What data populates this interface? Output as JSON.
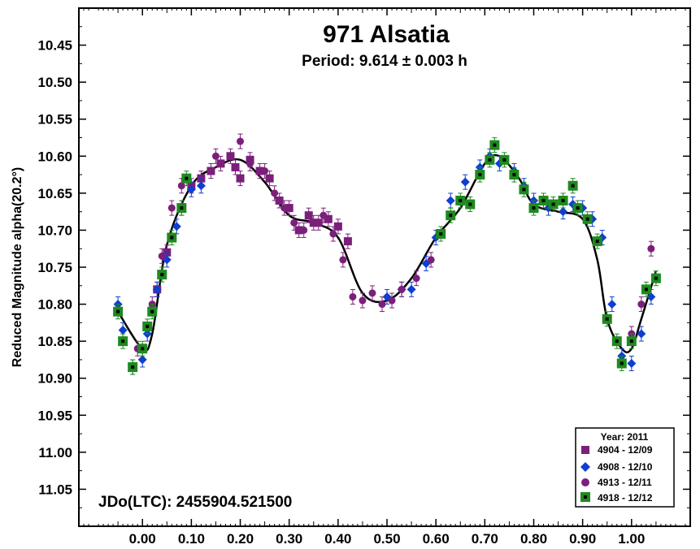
{
  "chart_data": {
    "type": "scatter",
    "title": "971 Alsatia",
    "subtitle": "Period: 9.614 ± 0.003 h",
    "ylabel": "Reduced Magnitude alpha(20.2°)",
    "xlabel": "",
    "annotation": "JDo(LTC): 2455904.521500",
    "xlim": [
      -0.13,
      1.12
    ],
    "ylim": [
      11.1,
      10.4
    ],
    "y_inverted": true,
    "x_ticks": [
      "0.00",
      "0.10",
      "0.20",
      "0.30",
      "0.40",
      "0.50",
      "0.60",
      "0.70",
      "0.80",
      "0.90",
      "1.00"
    ],
    "y_ticks": [
      "10.45",
      "10.50",
      "10.55",
      "10.60",
      "10.65",
      "10.70",
      "10.75",
      "10.80",
      "10.85",
      "10.90",
      "10.95",
      "11.00",
      "11.05"
    ],
    "legend": {
      "title": "Year: 2011",
      "placement": "bottom-right",
      "entries": [
        "4904 - 12/09",
        "4908 - 12/10",
        "4913 - 12/11",
        "4918 - 12/12"
      ]
    },
    "fit_curve": {
      "x": [
        -0.05,
        0.0,
        0.02,
        0.05,
        0.1,
        0.15,
        0.2,
        0.25,
        0.3,
        0.35,
        0.4,
        0.45,
        0.5,
        0.55,
        0.6,
        0.65,
        0.7,
        0.73,
        0.77,
        0.8,
        0.85,
        0.9,
        0.93,
        0.95,
        0.98,
        1.0,
        1.02,
        1.05
      ],
      "y": [
        10.81,
        10.86,
        10.84,
        10.72,
        10.64,
        10.615,
        10.605,
        10.635,
        10.68,
        10.69,
        10.71,
        10.785,
        10.795,
        10.765,
        10.71,
        10.67,
        10.61,
        10.6,
        10.63,
        10.665,
        10.675,
        10.685,
        10.74,
        10.82,
        10.86,
        10.86,
        10.82,
        10.755
      ]
    },
    "series": [
      {
        "name": "4904 - 12/09",
        "marker": "square",
        "color": "#7b1f7b",
        "x": [
          0.03,
          0.05,
          0.08,
          0.1,
          0.12,
          0.14,
          0.16,
          0.18,
          0.19,
          0.2,
          0.22,
          0.24,
          0.26,
          0.28,
          0.3,
          0.32,
          0.34,
          0.35,
          0.36,
          0.38,
          0.4,
          0.42
        ],
        "y": [
          10.78,
          10.73,
          10.67,
          10.64,
          10.63,
          10.62,
          10.61,
          10.6,
          10.615,
          10.63,
          10.605,
          10.62,
          10.63,
          10.66,
          10.67,
          10.7,
          10.68,
          10.69,
          10.69,
          10.685,
          10.695,
          10.715
        ]
      },
      {
        "name": "4908 - 12/10",
        "marker": "diamond",
        "color": "#0f3fd0",
        "x": [
          -0.05,
          -0.04,
          -0.02,
          0.0,
          0.01,
          0.03,
          0.05,
          0.07,
          0.1,
          0.12,
          0.5,
          0.53,
          0.55,
          0.58,
          0.6,
          0.63,
          0.66,
          0.69,
          0.71,
          0.73,
          0.76,
          0.78,
          0.8,
          0.83,
          0.86,
          0.88,
          0.9,
          0.92,
          0.94,
          0.96,
          0.98,
          1.0,
          1.02,
          1.04
        ],
        "y": [
          10.8,
          10.835,
          10.885,
          10.875,
          10.84,
          10.78,
          10.74,
          10.695,
          10.645,
          10.64,
          10.79,
          10.78,
          10.78,
          10.745,
          10.71,
          10.66,
          10.635,
          10.615,
          10.6,
          10.61,
          10.62,
          10.64,
          10.66,
          10.67,
          10.675,
          10.665,
          10.67,
          10.685,
          10.71,
          10.8,
          10.87,
          10.88,
          10.84,
          10.79
        ]
      },
      {
        "name": "4913 - 12/11",
        "marker": "circle",
        "color": "#7b1f7b",
        "x": [
          -0.01,
          0.02,
          0.04,
          0.06,
          0.08,
          0.15,
          0.2,
          0.22,
          0.25,
          0.27,
          0.29,
          0.31,
          0.33,
          0.37,
          0.39,
          0.41,
          0.43,
          0.45,
          0.47,
          0.49,
          0.51,
          0.53,
          0.56,
          0.59,
          1.0,
          1.02,
          1.04
        ],
        "y": [
          10.86,
          10.8,
          10.735,
          10.67,
          10.64,
          10.6,
          10.58,
          10.61,
          10.62,
          10.65,
          10.67,
          10.69,
          10.7,
          10.68,
          10.705,
          10.74,
          10.79,
          10.795,
          10.785,
          10.8,
          10.795,
          10.78,
          10.765,
          10.74,
          10.84,
          10.8,
          10.725
        ]
      },
      {
        "name": "4918 - 12/12",
        "marker": "square-black",
        "color": "#1e8a1e",
        "x": [
          -0.05,
          -0.04,
          -0.02,
          0.0,
          0.01,
          0.02,
          0.04,
          0.06,
          0.08,
          0.09,
          0.61,
          0.63,
          0.65,
          0.67,
          0.69,
          0.71,
          0.72,
          0.74,
          0.76,
          0.78,
          0.8,
          0.82,
          0.84,
          0.86,
          0.88,
          0.89,
          0.91,
          0.93,
          0.95,
          0.97,
          0.98,
          1.0,
          1.03,
          1.05
        ],
        "y": [
          10.81,
          10.85,
          10.885,
          10.86,
          10.83,
          10.81,
          10.76,
          10.71,
          10.67,
          10.63,
          10.705,
          10.68,
          10.66,
          10.665,
          10.625,
          10.605,
          10.585,
          10.605,
          10.625,
          10.645,
          10.67,
          10.66,
          10.665,
          10.66,
          10.64,
          10.67,
          10.685,
          10.715,
          10.82,
          10.85,
          10.88,
          10.85,
          10.78,
          10.765
        ]
      }
    ]
  }
}
